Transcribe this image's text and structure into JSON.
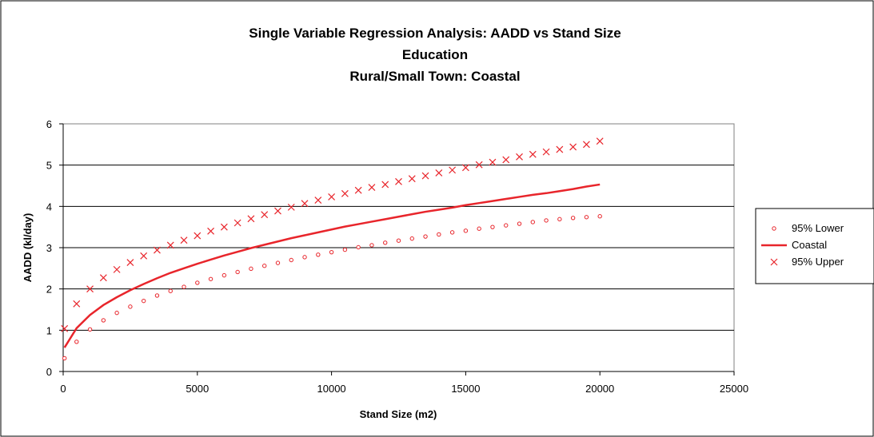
{
  "chart_data": {
    "type": "line",
    "title_lines": [
      "Single Variable Regression Analysis: AADD vs Stand Size",
      "Education",
      "Rural/Small Town: Coastal"
    ],
    "xlabel": "Stand Size (m2)",
    "ylabel": "AADD (kl/day)",
    "xlim": [
      0,
      25000
    ],
    "ylim": [
      0,
      6
    ],
    "x_ticks": [
      "0",
      "5000",
      "10000",
      "15000",
      "20000",
      "25000"
    ],
    "y_ticks": [
      "0",
      "1",
      "2",
      "3",
      "4",
      "5",
      "6"
    ],
    "grid": "horizontal",
    "legend_position": "right",
    "colors": {
      "series": "#e8252b",
      "plot_border": "#808080",
      "gridline": "#000000",
      "frame": "#000000"
    },
    "x": [
      50,
      500,
      1000,
      1500,
      2000,
      2500,
      3000,
      3500,
      4000,
      4500,
      5000,
      5500,
      6000,
      6500,
      7000,
      7500,
      8000,
      8500,
      9000,
      9500,
      10000,
      10500,
      11000,
      11500,
      12000,
      12500,
      13000,
      13500,
      14000,
      14500,
      15000,
      15500,
      16000,
      16500,
      17000,
      17500,
      18000,
      18500,
      19000,
      19500,
      20000
    ],
    "series": [
      {
        "name": "95% Lower",
        "marker": "circle",
        "values": [
          0.32,
          0.72,
          1.02,
          1.24,
          1.42,
          1.57,
          1.71,
          1.84,
          1.95,
          2.05,
          2.15,
          2.24,
          2.33,
          2.41,
          2.49,
          2.56,
          2.63,
          2.7,
          2.77,
          2.83,
          2.89,
          2.95,
          3.01,
          3.06,
          3.12,
          3.17,
          3.22,
          3.27,
          3.32,
          3.37,
          3.41,
          3.46,
          3.5,
          3.54,
          3.58,
          3.62,
          3.66,
          3.69,
          3.72,
          3.74,
          3.76
        ]
      },
      {
        "name": "Coastal",
        "marker": "line",
        "values": [
          0.58,
          1.05,
          1.37,
          1.61,
          1.8,
          1.97,
          2.12,
          2.26,
          2.39,
          2.5,
          2.61,
          2.71,
          2.81,
          2.9,
          2.99,
          3.07,
          3.15,
          3.23,
          3.3,
          3.37,
          3.44,
          3.51,
          3.57,
          3.63,
          3.69,
          3.75,
          3.81,
          3.87,
          3.92,
          3.97,
          4.03,
          4.08,
          4.13,
          4.18,
          4.23,
          4.28,
          4.32,
          4.37,
          4.42,
          4.48,
          4.53
        ]
      },
      {
        "name": "95% Upper",
        "marker": "cross",
        "values": [
          1.04,
          1.64,
          2.0,
          2.27,
          2.47,
          2.64,
          2.8,
          2.94,
          3.06,
          3.18,
          3.29,
          3.4,
          3.5,
          3.6,
          3.7,
          3.8,
          3.89,
          3.98,
          4.07,
          4.15,
          4.23,
          4.31,
          4.39,
          4.46,
          4.53,
          4.6,
          4.67,
          4.74,
          4.81,
          4.88,
          4.94,
          5.01,
          5.07,
          5.13,
          5.2,
          5.26,
          5.32,
          5.38,
          5.44,
          5.5,
          5.58
        ]
      }
    ]
  }
}
